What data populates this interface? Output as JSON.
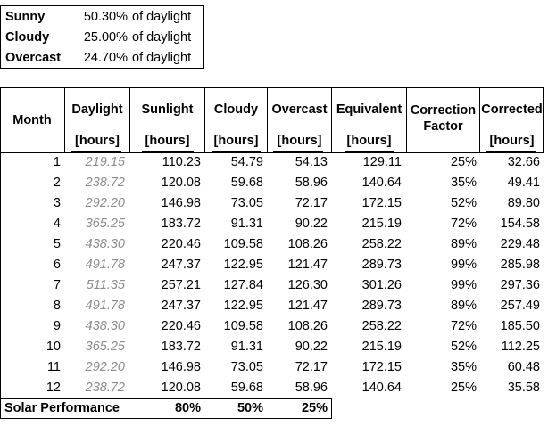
{
  "summary": [
    {
      "label": "Sunny",
      "percent": "50.30%",
      "suffix": "of daylight"
    },
    {
      "label": "Cloudy",
      "percent": "25.00%",
      "suffix": "of daylight"
    },
    {
      "label": "Overcast",
      "percent": "24.70%",
      "suffix": "of daylight"
    }
  ],
  "table": {
    "headers": {
      "month": "Month",
      "daylight": "Daylight",
      "sunlight": "Sunlight",
      "cloudy": "Cloudy",
      "overcast": "Overcast",
      "equivalent": "Equivalent",
      "correction": "Correction Factor",
      "corrected": "Corrected"
    },
    "units": {
      "daylight": "[hours]",
      "sunlight": "[hours]",
      "cloudy": "[hours]",
      "overcast": "[hours]",
      "equivalent": "[hours]",
      "corrected": "[hours]"
    },
    "rows": [
      {
        "month": "1",
        "daylight": "219.15",
        "sunlight": "110.23",
        "cloudy": "54.79",
        "overcast": "54.13",
        "equivalent": "129.11",
        "correction": "25%",
        "corrected": "32.66"
      },
      {
        "month": "2",
        "daylight": "238.72",
        "sunlight": "120.08",
        "cloudy": "59.68",
        "overcast": "58.96",
        "equivalent": "140.64",
        "correction": "35%",
        "corrected": "49.41"
      },
      {
        "month": "3",
        "daylight": "292.20",
        "sunlight": "146.98",
        "cloudy": "73.05",
        "overcast": "72.17",
        "equivalent": "172.15",
        "correction": "52%",
        "corrected": "89.80"
      },
      {
        "month": "4",
        "daylight": "365.25",
        "sunlight": "183.72",
        "cloudy": "91.31",
        "overcast": "90.22",
        "equivalent": "215.19",
        "correction": "72%",
        "corrected": "154.58"
      },
      {
        "month": "5",
        "daylight": "438.30",
        "sunlight": "220.46",
        "cloudy": "109.58",
        "overcast": "108.26",
        "equivalent": "258.22",
        "correction": "89%",
        "corrected": "229.48"
      },
      {
        "month": "6",
        "daylight": "491.78",
        "sunlight": "247.37",
        "cloudy": "122.95",
        "overcast": "121.47",
        "equivalent": "289.73",
        "correction": "99%",
        "corrected": "285.98"
      },
      {
        "month": "7",
        "daylight": "511.35",
        "sunlight": "257.21",
        "cloudy": "127.84",
        "overcast": "126.30",
        "equivalent": "301.26",
        "correction": "99%",
        "corrected": "297.36"
      },
      {
        "month": "8",
        "daylight": "491.78",
        "sunlight": "247.37",
        "cloudy": "122.95",
        "overcast": "121.47",
        "equivalent": "289.73",
        "correction": "89%",
        "corrected": "257.49"
      },
      {
        "month": "9",
        "daylight": "438.30",
        "sunlight": "220.46",
        "cloudy": "109.58",
        "overcast": "108.26",
        "equivalent": "258.22",
        "correction": "72%",
        "corrected": "185.50"
      },
      {
        "month": "10",
        "daylight": "365.25",
        "sunlight": "183.72",
        "cloudy": "91.31",
        "overcast": "90.22",
        "equivalent": "215.19",
        "correction": "52%",
        "corrected": "112.25"
      },
      {
        "month": "11",
        "daylight": "292.20",
        "sunlight": "146.98",
        "cloudy": "73.05",
        "overcast": "72.17",
        "equivalent": "172.15",
        "correction": "35%",
        "corrected": "60.48"
      },
      {
        "month": "12",
        "daylight": "238.72",
        "sunlight": "120.08",
        "cloudy": "59.68",
        "overcast": "58.96",
        "equivalent": "140.64",
        "correction": "25%",
        "corrected": "35.58"
      }
    ],
    "footer": {
      "label": "Solar Performance",
      "sunlight": "80%",
      "cloudy": "50%",
      "overcast": "25%"
    }
  }
}
